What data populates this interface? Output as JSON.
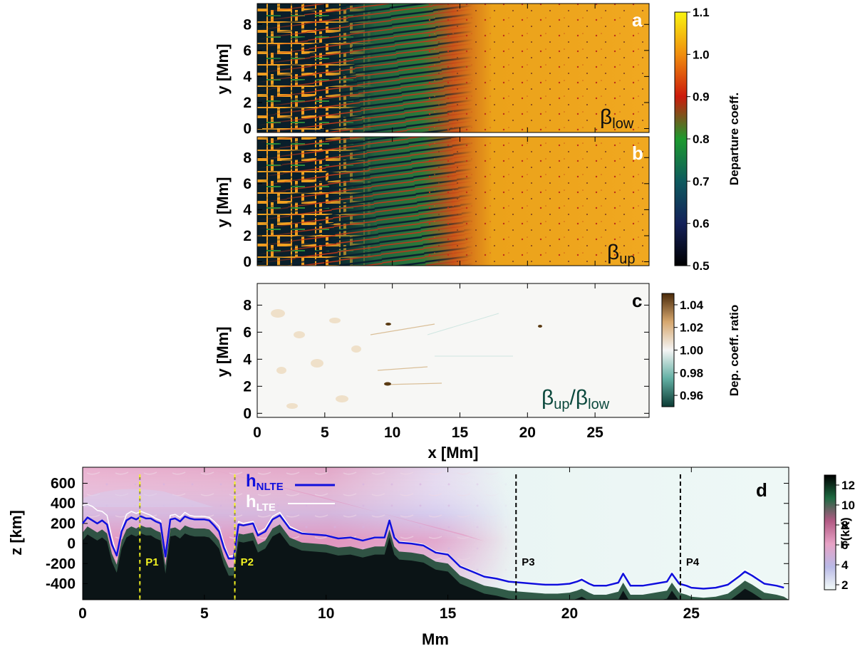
{
  "chart_data": [
    {
      "panel": "a",
      "type": "heatmap",
      "panel_label": "a",
      "ylabel": "y [Mm]",
      "xlim": [
        0,
        29
      ],
      "ylim": [
        -0.3,
        9.6
      ],
      "yticks": [
        0,
        2,
        4,
        6,
        8
      ],
      "annotation": {
        "symbol": "β",
        "sub": "low"
      },
      "colorbar": {
        "label": "Departure coeff.",
        "ticks": [
          "0.5",
          "0.6",
          "0.7",
          "0.8",
          "0.9",
          "1.0",
          "1.1"
        ],
        "range": [
          0.5,
          1.1
        ],
        "colors": [
          "#000000",
          "#14215a",
          "#0e5a5e",
          "#1d9a2e",
          "#cc1a0c",
          "#f08e0e",
          "#f9f410"
        ]
      }
    },
    {
      "panel": "b",
      "type": "heatmap",
      "panel_label": "b",
      "ylabel": "y [Mm]",
      "xlim": [
        0,
        29
      ],
      "ylim": [
        -0.3,
        9.6
      ],
      "yticks": [
        0,
        2,
        4,
        6,
        8
      ],
      "annotation": {
        "symbol": "β",
        "sub": "up"
      }
    },
    {
      "panel": "c",
      "type": "heatmap",
      "panel_label": "c",
      "xlabel": "x [Mm]",
      "ylabel": "y [Mm]",
      "xlim": [
        0,
        29
      ],
      "ylim": [
        -0.3,
        9.6
      ],
      "xticks": [
        0,
        5,
        10,
        15,
        20,
        25
      ],
      "yticks": [
        0,
        2,
        4,
        6,
        8
      ],
      "annotation": {
        "symbol1": "β",
        "sub1": "up",
        "slash": "/",
        "symbol2": "β",
        "sub2": "low"
      },
      "colorbar": {
        "label": "Dep. coeff. ratio",
        "ticks": [
          "0.96",
          "0.98",
          "1.00",
          "1.02",
          "1.04"
        ],
        "range": [
          0.95,
          1.05
        ],
        "colors": [
          "#0b3b34",
          "#63b0a4",
          "#f5f5f5",
          "#d6a76e",
          "#4a2a0a"
        ]
      }
    },
    {
      "panel": "d",
      "type": "line",
      "panel_label": "d",
      "xlabel": "Mm",
      "ylabel": "z [km]",
      "xlim": [
        0,
        29
      ],
      "ylim": [
        -560,
        760
      ],
      "xticks": [
        0,
        5,
        10,
        15,
        20,
        25
      ],
      "yticks": [
        600,
        400,
        200,
        0,
        -200,
        -400
      ],
      "legend": {
        "nlte": {
          "symbol": "h",
          "sub": "NLTE"
        },
        "lte": {
          "symbol": "h",
          "sub": "LTE"
        }
      },
      "colorbar": {
        "label": "T(kK)",
        "ticks": [
          "2",
          "4",
          "6",
          "8",
          "10",
          "12"
        ],
        "range": [
          1.5,
          13
        ],
        "colors": [
          "#f3fbf8",
          "#b9b9e6",
          "#e7a2c5",
          "#b25a84",
          "#1e6a42",
          "#000000"
        ]
      },
      "markers": [
        {
          "label": "P1",
          "x": 2.35,
          "color": "#f2f222"
        },
        {
          "label": "P2",
          "x": 6.25,
          "color": "#f2f222"
        },
        {
          "label": "P3",
          "x": 17.8,
          "color": "#000000"
        },
        {
          "label": "P4",
          "x": 24.55,
          "color": "#000000"
        }
      ],
      "series": [
        {
          "name": "hNLTE",
          "color": "#1010dd",
          "x": [
            0.0,
            0.2,
            0.4,
            0.6,
            0.8,
            1.0,
            1.2,
            1.4,
            1.6,
            1.8,
            2.0,
            2.2,
            2.4,
            2.6,
            2.8,
            3.0,
            3.2,
            3.4,
            3.6,
            3.8,
            4.0,
            4.2,
            4.4,
            4.6,
            4.8,
            5.0,
            5.2,
            5.4,
            5.6,
            5.8,
            6.0,
            6.2,
            6.4,
            6.6,
            6.8,
            7.0,
            7.2,
            7.5,
            7.8,
            8.1,
            8.5,
            9.0,
            9.5,
            10.0,
            10.5,
            11.0,
            11.5,
            12.0,
            12.4,
            12.6,
            12.8,
            13.0,
            13.5,
            14.0,
            14.5,
            15.0,
            15.5,
            16.0,
            16.5,
            17.0,
            17.5,
            18.0,
            18.5,
            19.0,
            19.5,
            20.0,
            20.3,
            20.5,
            20.8,
            21.0,
            21.5,
            22.0,
            22.2,
            22.5,
            23.0,
            23.5,
            24.0,
            24.2,
            24.5,
            24.8,
            25.0,
            25.5,
            26.0,
            26.5,
            27.0,
            27.2,
            27.5,
            28.0,
            28.5,
            28.8
          ],
          "y": [
            200,
            260,
            230,
            200,
            230,
            190,
            -10,
            -120,
            120,
            230,
            260,
            240,
            270,
            250,
            250,
            220,
            200,
            -130,
            240,
            250,
            220,
            270,
            250,
            240,
            240,
            240,
            230,
            180,
            120,
            -40,
            -150,
            -150,
            190,
            180,
            190,
            200,
            80,
            120,
            240,
            280,
            150,
            100,
            90,
            80,
            50,
            60,
            30,
            60,
            60,
            230,
            60,
            10,
            0,
            -20,
            -90,
            -110,
            -230,
            -280,
            -330,
            -350,
            -380,
            -390,
            -400,
            -410,
            -410,
            -400,
            -380,
            -360,
            -400,
            -420,
            -420,
            -390,
            -300,
            -420,
            -420,
            -400,
            -380,
            -300,
            -400,
            -420,
            -440,
            -450,
            -440,
            -410,
            -320,
            -280,
            -320,
            -400,
            -420,
            -440
          ]
        },
        {
          "name": "hLTE",
          "color": "#ffffff",
          "x": [
            0.0,
            0.2,
            0.4,
            0.6,
            0.8,
            1.0,
            1.2,
            1.4,
            1.6,
            1.8,
            2.0,
            2.2,
            2.4,
            2.6,
            2.8,
            3.0,
            3.2,
            3.4,
            3.6,
            3.8,
            4.0,
            4.2,
            4.4,
            4.6,
            4.8,
            5.0,
            5.2,
            5.4,
            5.6,
            5.8,
            6.0,
            6.2,
            6.4,
            6.6,
            6.8,
            7.0,
            7.2,
            7.5,
            7.8,
            8.1,
            8.5,
            9.0,
            9.5,
            10.0,
            10.5,
            11.0,
            11.5,
            12.0,
            12.4,
            12.6,
            12.8,
            13.0,
            13.5,
            14.0,
            14.5,
            15.0,
            15.5,
            16.0,
            16.5,
            17.0,
            17.5,
            18.0,
            18.5,
            19.0,
            19.5,
            20.0,
            20.3,
            20.5,
            20.8,
            21.0,
            21.5,
            22.0,
            22.2,
            22.5,
            23.0,
            23.5,
            24.0,
            24.2,
            24.5,
            24.8,
            25.0,
            25.5,
            26.0,
            26.5,
            27.0,
            27.2,
            27.5,
            28.0,
            28.5,
            28.8
          ],
          "y": [
            380,
            390,
            370,
            330,
            320,
            280,
            60,
            -120,
            150,
            290,
            320,
            300,
            320,
            300,
            280,
            250,
            230,
            -100,
            280,
            290,
            260,
            310,
            280,
            270,
            270,
            270,
            260,
            220,
            170,
            0,
            -130,
            -120,
            220,
            200,
            210,
            220,
            110,
            150,
            270,
            310,
            170,
            110,
            95,
            85,
            55,
            65,
            35,
            65,
            65,
            240,
            70,
            20,
            10,
            -10,
            -80,
            -100,
            -220,
            -270,
            -320,
            -340,
            -370,
            -380,
            -390,
            -400,
            -400,
            -390,
            -360,
            -340,
            -390,
            -410,
            -410,
            -380,
            -280,
            -410,
            -410,
            -390,
            -370,
            -280,
            -390,
            -410,
            -430,
            -440,
            -430,
            -400,
            -300,
            -260,
            -300,
            -390,
            -410,
            -430
          ]
        }
      ]
    }
  ]
}
